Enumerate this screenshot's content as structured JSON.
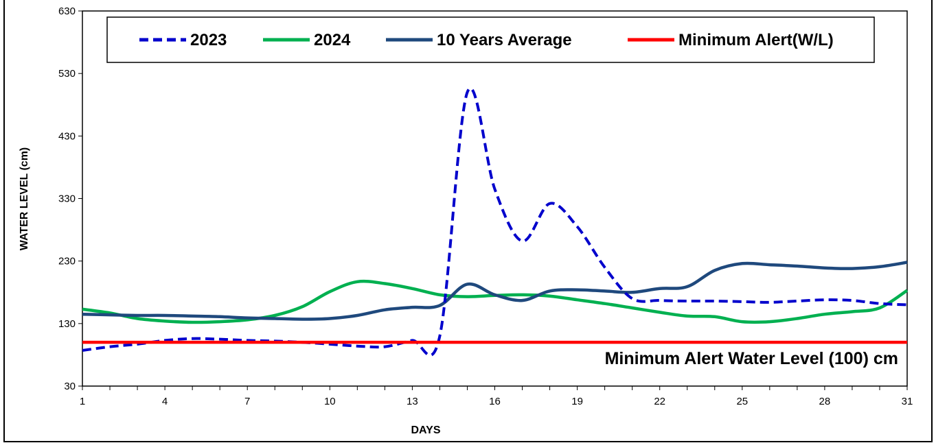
{
  "chart_data": {
    "type": "line",
    "title": "",
    "xlabel": "DAYS",
    "ylabel": "WATER LEVEL (cm)",
    "xlim": [
      1,
      31
    ],
    "ylim": [
      30,
      630
    ],
    "x_ticks": [
      1,
      4,
      7,
      10,
      13,
      16,
      19,
      22,
      25,
      28,
      31
    ],
    "y_ticks": [
      30,
      130,
      230,
      330,
      430,
      530,
      630
    ],
    "grid": false,
    "legend_position": "top",
    "annotation": "Minimum Alert Water Level (100) cm",
    "x": [
      1,
      2,
      3,
      4,
      5,
      6,
      7,
      8,
      9,
      10,
      11,
      12,
      13,
      14,
      15,
      16,
      17,
      18,
      19,
      20,
      21,
      22,
      23,
      24,
      25,
      26,
      27,
      28,
      29,
      30,
      31
    ],
    "series": [
      {
        "name": "2023",
        "color": "#0000cc",
        "dash": true,
        "values": [
          87,
          93,
          97,
          103,
          106,
          105,
          103,
          102,
          100,
          97,
          94,
          93,
          103,
          110,
          500,
          345,
          262,
          322,
          285,
          220,
          170,
          167,
          166,
          166,
          165,
          164,
          166,
          168,
          167,
          162,
          160
        ]
      },
      {
        "name": "2024",
        "color": "#00b050",
        "dash": false,
        "values": [
          153,
          147,
          138,
          134,
          132,
          133,
          136,
          143,
          157,
          181,
          197,
          194,
          186,
          176,
          173,
          175,
          176,
          174,
          168,
          162,
          155,
          148,
          142,
          141,
          133,
          133,
          138,
          145,
          149,
          155,
          183
        ]
      },
      {
        "name": "10 Years Average",
        "color": "#1f497d",
        "dash": false,
        "values": [
          145,
          144,
          143,
          143,
          142,
          141,
          139,
          138,
          137,
          138,
          143,
          152,
          156,
          159,
          193,
          176,
          167,
          182,
          184,
          182,
          180,
          186,
          189,
          215,
          226,
          224,
          222,
          219,
          218,
          221,
          228
        ]
      },
      {
        "name": "Minimum Alert(W/L)",
        "color": "#ff0000",
        "dash": false,
        "values": [
          100,
          100,
          100,
          100,
          100,
          100,
          100,
          100,
          100,
          100,
          100,
          100,
          100,
          100,
          100,
          100,
          100,
          100,
          100,
          100,
          100,
          100,
          100,
          100,
          100,
          100,
          100,
          100,
          100,
          100,
          100
        ]
      }
    ]
  }
}
